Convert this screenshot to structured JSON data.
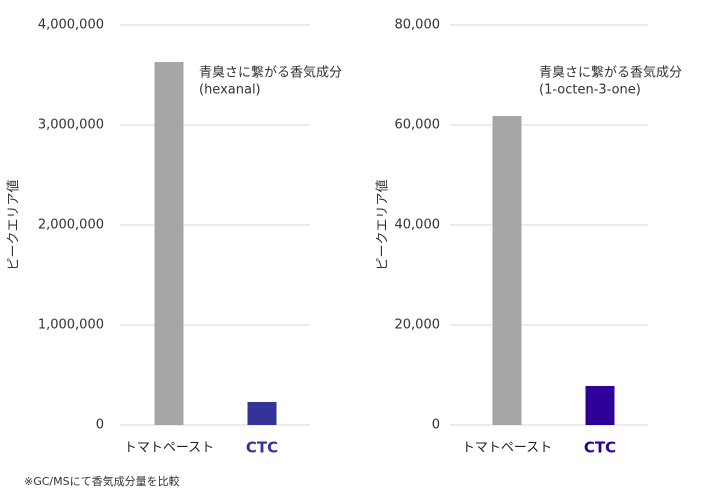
{
  "chart_data": [
    {
      "type": "bar",
      "y_label": "ピークエリア値",
      "annotation": [
        "青臭さに繋がる香気成分",
        "(hexanal)"
      ],
      "categories": [
        "トマトペースト",
        "CTC"
      ],
      "values": [
        3630000,
        230000
      ],
      "colors": [
        "#a6a6a6",
        "#333399"
      ],
      "label_colors": [
        "#222222",
        "#333399"
      ],
      "ylim": [
        0,
        4000000
      ],
      "yticks": [
        0,
        {
          "value": 1000000,
          "label": "1,000,000"
        },
        {
          "value": 2000000,
          "label": "2,000,000"
        },
        {
          "value": 3000000,
          "label": "3,000,000"
        },
        {
          "value": 4000000,
          "label": "4,000,000"
        }
      ],
      "grid": true
    },
    {
      "type": "bar",
      "y_label": "ピークエリア値",
      "annotation": [
        "青臭さに繋がる香気成分",
        "(1-octen-3-one)"
      ],
      "categories": [
        "トマトペースト",
        "CTC"
      ],
      "values": [
        61800,
        7800
      ],
      "colors": [
        "#a6a6a6",
        "#2e0099"
      ],
      "label_colors": [
        "#222222",
        "#2e0099"
      ],
      "ylim": [
        0,
        80000
      ],
      "yticks": [
        0,
        {
          "value": 20000,
          "label": "20,000"
        },
        {
          "value": 40000,
          "label": "40,000"
        },
        {
          "value": 60000,
          "label": "60,000"
        },
        {
          "value": 80000,
          "label": "80,000"
        }
      ],
      "grid": true
    }
  ],
  "footnote": "※GC/MSにて香気成分量を比較"
}
